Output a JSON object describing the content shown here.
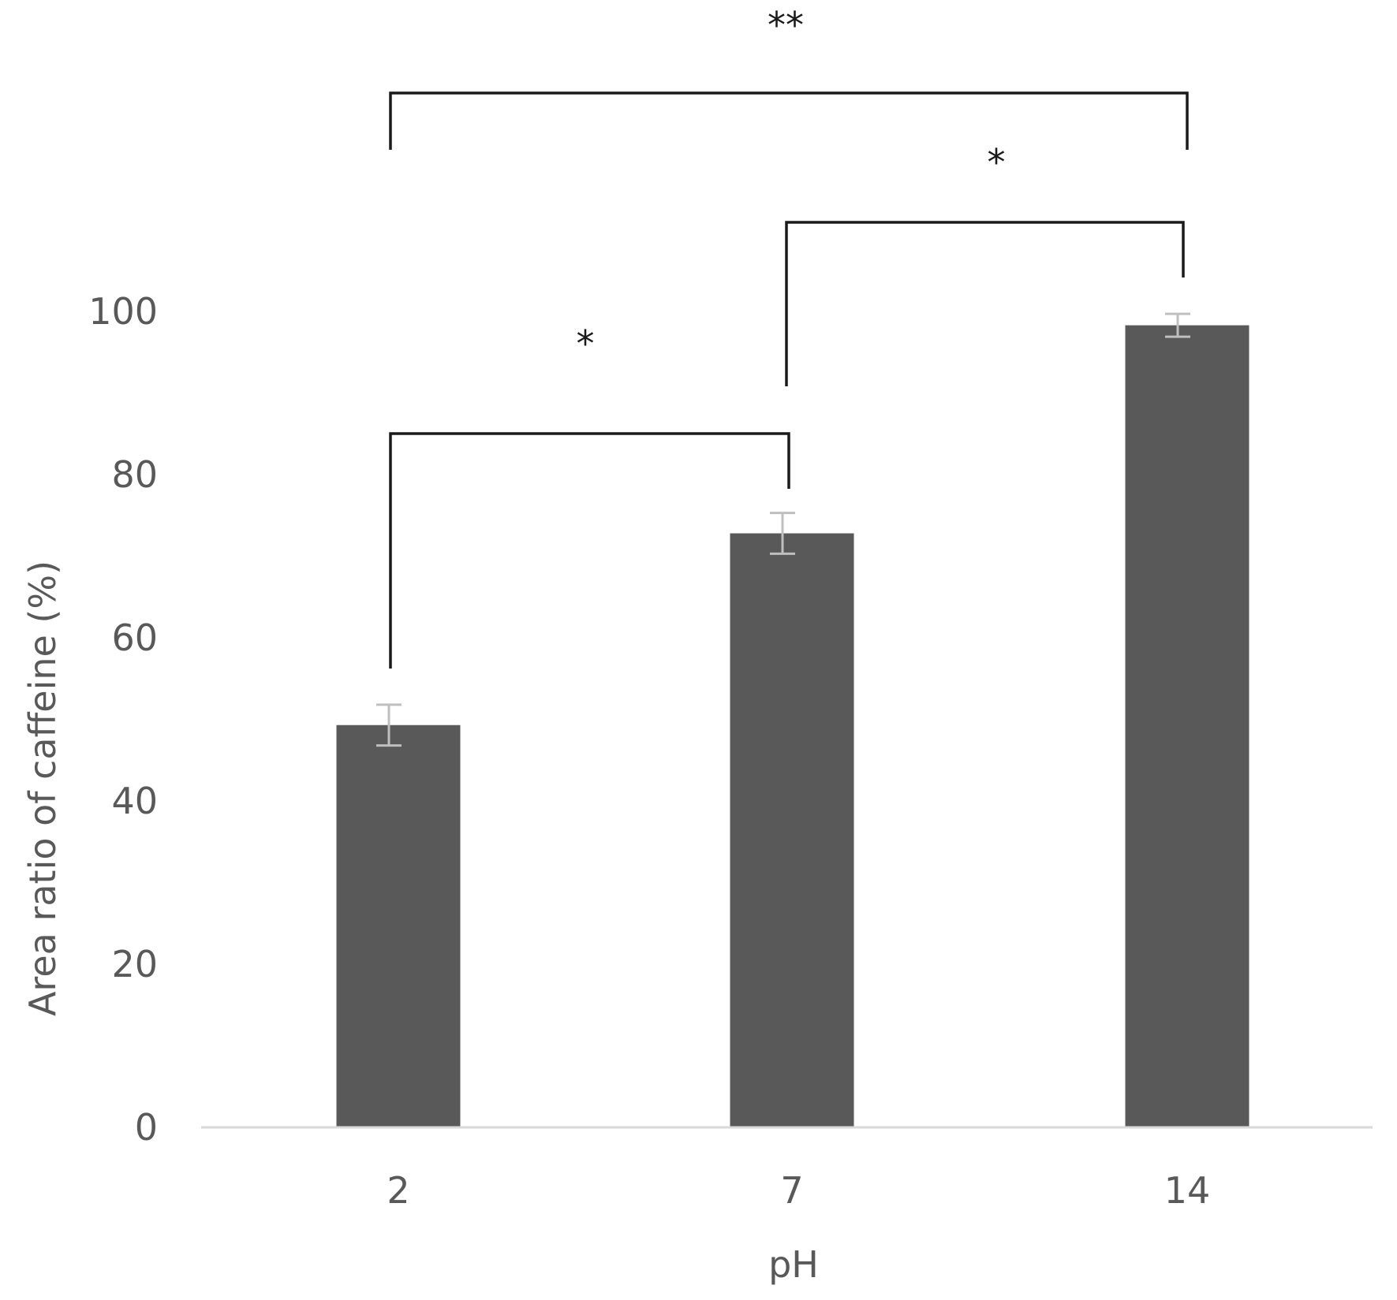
{
  "chart_data": {
    "type": "bar",
    "title": "",
    "xlabel": "pH",
    "ylabel": "Area ratio of caffeine (%)",
    "categories": [
      "2",
      "7",
      "14"
    ],
    "series": [
      {
        "values": [
          49.3,
          72.8,
          98.3
        ],
        "error": [
          2.5,
          2.5,
          1.4
        ]
      }
    ],
    "ylim": [
      0,
      100
    ],
    "yticks": [
      "0",
      "20",
      "40",
      "60",
      "80",
      "100"
    ],
    "grid": false,
    "legend": "none",
    "bar_color": "#595959",
    "error_color": "#bfbfbf",
    "significance": [
      {
        "from": "2",
        "to": "7",
        "label": "*"
      },
      {
        "from": "7",
        "to": "14",
        "label": "*"
      },
      {
        "from": "2",
        "to": "14",
        "label": "**"
      }
    ]
  }
}
